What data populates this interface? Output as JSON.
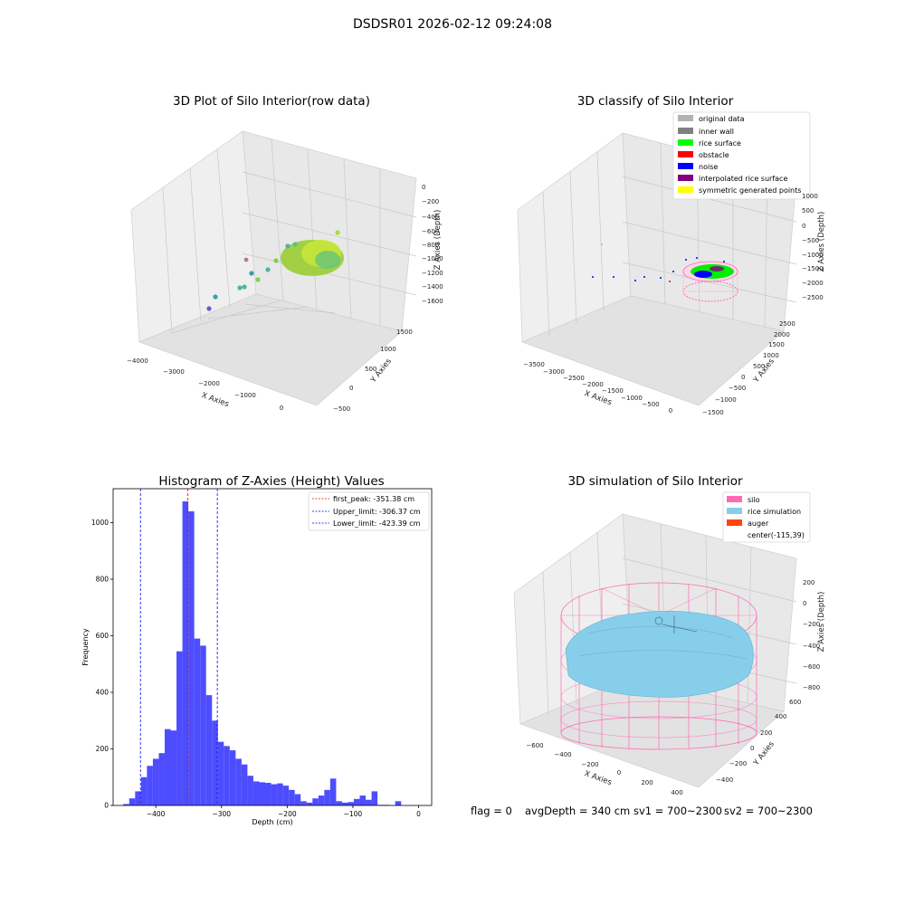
{
  "suptitle": "DSDSR01 2026-02-12 09:24:08",
  "status_line": {
    "flag": "flag = 0",
    "avgdepth": "avgDepth = 340 cm",
    "sv1": "sv1 = 700~2300",
    "sv2": "sv2 = 700~2300"
  },
  "colors": {
    "hist_bar": "#4d4dff",
    "peak_line": "#ff0000",
    "limit_line": "#0000ff",
    "silo": "#ff69b4",
    "rice_sim": "#87ceeb",
    "auger": "#ff4500",
    "pane": "#f2f2f2"
  },
  "chart_data": [
    {
      "type": "scatter",
      "title": "3D Plot of Silo Interior(row data)",
      "xlabel": "X Axies",
      "ylabel": "Y Axies",
      "zlabel": "Z Axies (Depth)",
      "xticks": [
        "−4000",
        "−3000",
        "−2000",
        "−1000",
        "0"
      ],
      "yticks": [
        "−500",
        "0",
        "500",
        "1000",
        "1500"
      ],
      "zticks": [
        "0",
        "−200",
        "−400",
        "−600",
        "−800",
        "−1000",
        "−1200",
        "−1400",
        "−1600"
      ],
      "grid": true
    },
    {
      "type": "scatter",
      "title": "3D classify of Silo Interior",
      "xlabel": "X Axies",
      "ylabel": "Y Axies",
      "zlabel": "Z Axies (Depth)",
      "xticks": [
        "−3500",
        "−3000",
        "−2500",
        "−2000",
        "−1500",
        "−1000",
        "−500",
        "0"
      ],
      "yticks": [
        "−1500",
        "−1000",
        "−500",
        "0",
        "500",
        "1000",
        "1500",
        "2000",
        "2500"
      ],
      "zticks": [
        "1000",
        "500",
        "0",
        "−500",
        "−1000",
        "−1500",
        "−2000",
        "−2500"
      ],
      "legend_position": "top-right",
      "legend": [
        {
          "label": "original data",
          "color": "#b3b3b3"
        },
        {
          "label": "inner wall",
          "color": "#808080"
        },
        {
          "label": "rice surface",
          "color": "#00ff00"
        },
        {
          "label": "obstacle",
          "color": "#ff0000"
        },
        {
          "label": "noise",
          "color": "#0000ff"
        },
        {
          "label": "interpolated rice surface",
          "color": "#800080"
        },
        {
          "label": "symmetric generated points",
          "color": "#ffff00"
        }
      ],
      "grid": true
    },
    {
      "type": "bar",
      "title": "Histogram of Z-Axies (Height) Values",
      "xlabel": "Depth (cm)",
      "ylabel": "Frequency",
      "xlim": [
        -465,
        20
      ],
      "ylim": [
        0,
        1120
      ],
      "xticks": [
        -400,
        -300,
        -200,
        -100,
        0
      ],
      "xtick_labels": [
        "−400",
        "−300",
        "−200",
        "−100",
        "0"
      ],
      "yticks": [
        0,
        200,
        400,
        600,
        800,
        1000
      ],
      "bin_start": -449.5,
      "bin_width": 9.0,
      "values": [
        5,
        25,
        50,
        100,
        140,
        165,
        185,
        270,
        265,
        545,
        1075,
        1040,
        590,
        565,
        390,
        300,
        225,
        210,
        195,
        165,
        145,
        105,
        85,
        82,
        80,
        75,
        78,
        70,
        55,
        40,
        15,
        10,
        25,
        35,
        55,
        95,
        15,
        10,
        12,
        23,
        35,
        20,
        50,
        2,
        2,
        0,
        15
      ],
      "vlines": [
        {
          "name": "first_peak: -351.38 cm",
          "x": -351.38,
          "color": "#ff0000"
        },
        {
          "name": "Upper_limit: -306.37 cm",
          "x": -306.37,
          "color": "#0000ff"
        },
        {
          "name": "Lower_limit: -423.39 cm",
          "x": -423.39,
          "color": "#0000ff"
        }
      ],
      "legend_position": "top-right",
      "grid": false
    },
    {
      "type": "scatter",
      "title": "3D simulation of Silo Interior",
      "xlabel": "X Axies",
      "ylabel": "Y Axies",
      "zlabel": "Z Axies (Depth)",
      "xticks": [
        "−600",
        "−400",
        "−200",
        "0",
        "200",
        "400"
      ],
      "yticks": [
        "−400",
        "−200",
        "0",
        "200",
        "400",
        "600"
      ],
      "zticks": [
        "200",
        "0",
        "−200",
        "−400",
        "−600",
        "−800"
      ],
      "legend_position": "top-right",
      "legend": [
        {
          "label": "silo",
          "color": "#ff69b4"
        },
        {
          "label": "rice simulation",
          "color": "#87ceeb"
        },
        {
          "label": "auger",
          "color": "#ff4500"
        },
        {
          "label": "center(-115,39)",
          "color": ""
        }
      ],
      "grid": true
    }
  ]
}
